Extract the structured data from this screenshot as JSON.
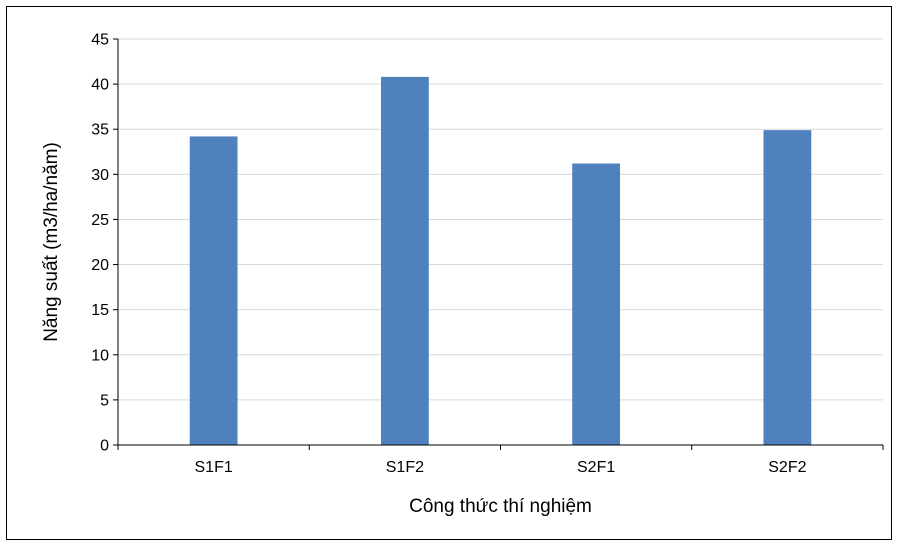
{
  "chart_data": {
    "type": "bar",
    "title": "",
    "xlabel": "Công thức thí nghiệm",
    "ylabel": "Năng suất (m3/ha/năm)",
    "categories": [
      "S1F1",
      "S1F2",
      "S2F1",
      "S2F2"
    ],
    "values": [
      34.2,
      40.8,
      31.2,
      34.9
    ],
    "ylim": [
      0,
      45
    ],
    "yticks": [
      0,
      5,
      10,
      15,
      20,
      25,
      30,
      35,
      40,
      45
    ],
    "grid": true,
    "legend": "none",
    "bar_color": "#4f81bd",
    "grid_color": "#d9d9d9"
  }
}
